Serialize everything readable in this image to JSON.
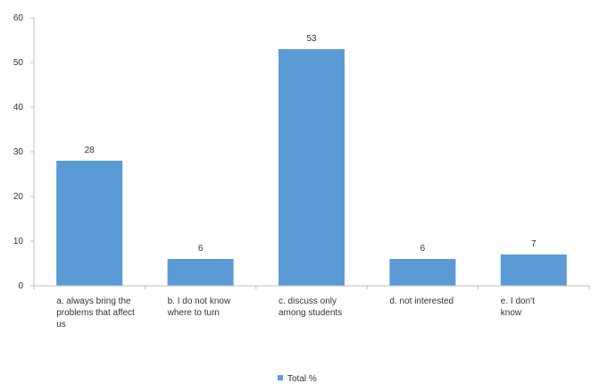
{
  "chart_data": {
    "type": "bar",
    "categories": [
      "a. always bring the problems that affect us",
      "b. I do not know where to turn",
      "c. discuss only among students",
      "d. not interested",
      "e. I don't know"
    ],
    "category_lines": [
      [
        "a. always bring the",
        "problems that affect",
        "us"
      ],
      [
        "b. I do not know",
        "where to turn"
      ],
      [
        "c. discuss only",
        "among students"
      ],
      [
        "d. not interested"
      ],
      [
        "e. I don't",
        "know"
      ]
    ],
    "series": [
      {
        "name": "Total %",
        "values": [
          28,
          6,
          53,
          6,
          7
        ],
        "color": "#5b9bd5"
      }
    ],
    "ylim": [
      0,
      60
    ],
    "yticks": [
      0,
      10,
      20,
      30,
      40,
      50,
      60
    ],
    "grid": false,
    "legend": "bottom-center",
    "title": "",
    "xlabel": "",
    "ylabel": ""
  }
}
